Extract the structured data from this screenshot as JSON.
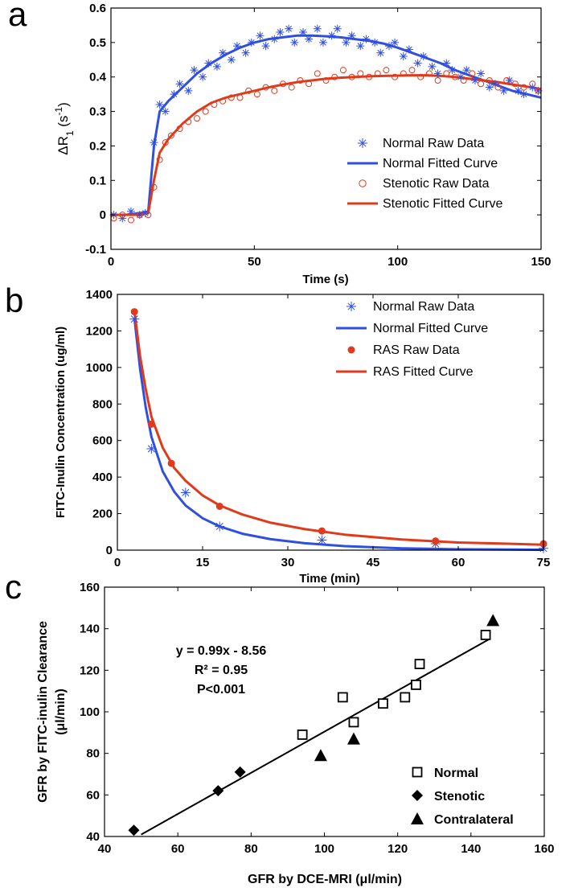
{
  "colors": {
    "blue": "#2f4fe0",
    "red": "#e03a1c",
    "black": "#000000"
  },
  "chart_data": [
    {
      "type": "line",
      "panel": "a",
      "title": "",
      "xlabel": "Time (s)",
      "ylabel_main": "ΔR",
      "ylabel_sub": "1",
      "ylabel_unit": " (s",
      "ylabel_sup": "-1",
      "ylabel_close": ")",
      "xlim": [
        0,
        150
      ],
      "ylim": [
        -0.1,
        0.6
      ],
      "xticks": [
        "0",
        "50",
        "100",
        "150"
      ],
      "yticks": [
        "-0.1",
        "0",
        "0.1",
        "0.2",
        "0.3",
        "0.4",
        "0.5",
        "0.6"
      ],
      "legend_position": "center-right",
      "legend": [
        {
          "label": "Normal Raw Data",
          "color": "#2f4fe0",
          "marker": "asterisk"
        },
        {
          "label": "Normal Fitted Curve",
          "color": "#2f4fe0",
          "marker": "line"
        },
        {
          "label": "Stenotic Raw Data",
          "color": "#e03a1c",
          "marker": "circle"
        },
        {
          "label": "Stenotic Fitted Curve",
          "color": "#e03a1c",
          "marker": "line"
        }
      ],
      "series": [
        {
          "name": "Normal Fitted Curve",
          "color": "#2f4fe0",
          "x": [
            0,
            5,
            10,
            13,
            15,
            17,
            20,
            25,
            30,
            35,
            40,
            45,
            50,
            55,
            60,
            65,
            70,
            75,
            80,
            85,
            90,
            95,
            100,
            105,
            110,
            115,
            120,
            125,
            130,
            135,
            140,
            145,
            150
          ],
          "y": [
            0.0,
            0.0,
            0.005,
            0.01,
            0.2,
            0.3,
            0.33,
            0.37,
            0.41,
            0.44,
            0.465,
            0.485,
            0.5,
            0.51,
            0.515,
            0.52,
            0.52,
            0.518,
            0.515,
            0.51,
            0.505,
            0.497,
            0.485,
            0.47,
            0.455,
            0.44,
            0.42,
            0.405,
            0.39,
            0.375,
            0.36,
            0.35,
            0.34
          ]
        },
        {
          "name": "Stenotic Fitted Curve",
          "color": "#e03a1c",
          "x": [
            0,
            5,
            10,
            13,
            15,
            17,
            20,
            25,
            30,
            35,
            40,
            45,
            50,
            55,
            60,
            65,
            70,
            75,
            80,
            85,
            90,
            95,
            100,
            105,
            110,
            115,
            120,
            125,
            130,
            135,
            140,
            145,
            150
          ],
          "y": [
            0.0,
            0.0,
            0.0,
            0.005,
            0.1,
            0.18,
            0.22,
            0.265,
            0.3,
            0.325,
            0.34,
            0.35,
            0.36,
            0.37,
            0.378,
            0.385,
            0.39,
            0.395,
            0.398,
            0.4,
            0.402,
            0.403,
            0.404,
            0.405,
            0.405,
            0.403,
            0.4,
            0.395,
            0.39,
            0.385,
            0.378,
            0.372,
            0.365
          ]
        },
        {
          "name": "Normal Raw Data",
          "color": "#2f4fe0",
          "marker": "asterisk",
          "x": [
            1,
            4,
            7,
            10,
            12,
            15,
            17,
            19,
            22,
            24,
            27,
            29,
            32,
            34,
            37,
            39,
            42,
            44,
            47,
            49,
            52,
            54,
            57,
            59,
            62,
            64,
            67,
            69,
            72,
            74,
            77,
            79,
            82,
            84,
            87,
            89,
            92,
            94,
            97,
            99,
            102,
            104,
            107,
            109,
            112,
            114,
            117,
            119,
            122,
            124,
            127,
            129,
            132,
            134,
            137,
            139,
            142,
            144,
            147,
            149
          ],
          "y": [
            0.0,
            -0.01,
            0.01,
            0.0,
            0.005,
            0.21,
            0.32,
            0.3,
            0.35,
            0.38,
            0.36,
            0.42,
            0.4,
            0.44,
            0.43,
            0.47,
            0.45,
            0.49,
            0.47,
            0.5,
            0.52,
            0.49,
            0.51,
            0.53,
            0.54,
            0.5,
            0.53,
            0.51,
            0.54,
            0.5,
            0.52,
            0.54,
            0.5,
            0.52,
            0.49,
            0.51,
            0.5,
            0.47,
            0.49,
            0.5,
            0.46,
            0.48,
            0.44,
            0.46,
            0.43,
            0.41,
            0.44,
            0.42,
            0.4,
            0.42,
            0.39,
            0.41,
            0.37,
            0.38,
            0.36,
            0.39,
            0.36,
            0.35,
            0.37,
            0.36
          ]
        },
        {
          "name": "Stenotic Raw Data",
          "color": "#e03a1c",
          "marker": "circle",
          "x": [
            1,
            4,
            7,
            10,
            13,
            15,
            17,
            19,
            21,
            24,
            27,
            30,
            33,
            36,
            39,
            42,
            45,
            48,
            51,
            54,
            57,
            60,
            63,
            66,
            69,
            72,
            75,
            78,
            81,
            84,
            87,
            90,
            93,
            96,
            99,
            102,
            105,
            108,
            111,
            114,
            117,
            120,
            123,
            126,
            129,
            132,
            135,
            138,
            141,
            144,
            147,
            149
          ],
          "y": [
            -0.01,
            0.0,
            -0.015,
            0.0,
            0.0,
            0.08,
            0.16,
            0.21,
            0.23,
            0.25,
            0.27,
            0.28,
            0.3,
            0.32,
            0.33,
            0.34,
            0.34,
            0.36,
            0.35,
            0.37,
            0.36,
            0.38,
            0.37,
            0.39,
            0.38,
            0.41,
            0.39,
            0.4,
            0.42,
            0.4,
            0.41,
            0.4,
            0.41,
            0.42,
            0.4,
            0.41,
            0.42,
            0.4,
            0.41,
            0.39,
            0.41,
            0.4,
            0.39,
            0.41,
            0.38,
            0.39,
            0.37,
            0.39,
            0.38,
            0.37,
            0.38,
            0.36
          ]
        }
      ]
    },
    {
      "type": "line",
      "panel": "b",
      "title": "",
      "xlabel": "Time (min)",
      "ylabel": "FITC-Inulin Concentration (ug/ml)",
      "xlim": [
        0,
        75
      ],
      "ylim": [
        0,
        1400
      ],
      "xticks": [
        "0",
        "15",
        "30",
        "45",
        "60",
        "75"
      ],
      "yticks": [
        "0",
        "200",
        "400",
        "600",
        "800",
        "1000",
        "1200",
        "1400"
      ],
      "legend_position": "top-right",
      "legend": [
        {
          "label": "Normal Raw Data",
          "color": "#2f4fe0",
          "marker": "asterisk"
        },
        {
          "label": "Normal Fitted Curve",
          "color": "#2f4fe0",
          "marker": "line"
        },
        {
          "label": "RAS Raw Data",
          "color": "#e03a1c",
          "marker": "dot"
        },
        {
          "label": "RAS Fitted Curve",
          "color": "#e03a1c",
          "marker": "line"
        }
      ],
      "series": [
        {
          "name": "Normal Fitted Curve",
          "color": "#2f4fe0",
          "x": [
            3,
            4,
            5,
            6,
            8,
            10,
            12,
            15,
            18,
            22,
            27,
            33,
            40,
            50,
            60,
            75
          ],
          "y": [
            1270,
            990,
            780,
            620,
            430,
            320,
            245,
            175,
            130,
            90,
            60,
            38,
            22,
            10,
            5,
            2
          ]
        },
        {
          "name": "RAS Fitted Curve",
          "color": "#e03a1c",
          "x": [
            3,
            4,
            5,
            6,
            8,
            10,
            12,
            15,
            18,
            22,
            27,
            33,
            40,
            50,
            60,
            75
          ],
          "y": [
            1310,
            1060,
            880,
            730,
            560,
            450,
            380,
            300,
            245,
            195,
            150,
            115,
            85,
            58,
            42,
            30
          ]
        },
        {
          "name": "Normal Raw Data",
          "color": "#2f4fe0",
          "marker": "asterisk",
          "x": [
            3,
            6,
            12,
            18,
            36,
            56,
            75
          ],
          "y": [
            1265,
            555,
            315,
            130,
            55,
            35,
            10
          ]
        },
        {
          "name": "RAS Raw Data",
          "color": "#e03a1c",
          "marker": "dot",
          "x": [
            3,
            6,
            9.5,
            18,
            36,
            56,
            75
          ],
          "y": [
            1305,
            690,
            475,
            240,
            105,
            50,
            35
          ]
        }
      ]
    },
    {
      "type": "scatter",
      "panel": "c",
      "title": "",
      "xlabel": "GFR by DCE-MRI (μl/min)",
      "ylabel_line1": "GFR by FITC-inulin Clearance",
      "ylabel_line2": "(μl/min)",
      "xlim": [
        40,
        160
      ],
      "ylim": [
        40,
        160
      ],
      "xticks": [
        "40",
        "60",
        "80",
        "100",
        "120",
        "140",
        "160"
      ],
      "yticks": [
        "40",
        "60",
        "80",
        "100",
        "120",
        "140",
        "160"
      ],
      "annotation": {
        "line1": "y = 0.99x - 8.56",
        "line2": "R² = 0.95",
        "line3": "P<0.001"
      },
      "fit_line": {
        "slope": 0.99,
        "intercept": -8.56,
        "x_range": [
          50,
          145
        ]
      },
      "legend_position": "bottom-right",
      "legend": [
        {
          "label": "Normal",
          "marker": "square-open"
        },
        {
          "label": "Stenotic",
          "marker": "diamond"
        },
        {
          "label": "Contralateral",
          "marker": "triangle"
        }
      ],
      "series": [
        {
          "name": "Normal",
          "marker": "square-open",
          "x": [
            94,
            105,
            108,
            116,
            122,
            125,
            126,
            144
          ],
          "y": [
            89,
            107,
            95,
            104,
            107,
            113,
            123,
            137
          ]
        },
        {
          "name": "Stenotic",
          "marker": "diamond",
          "x": [
            48,
            71,
            77
          ],
          "y": [
            43,
            62,
            71
          ]
        },
        {
          "name": "Contralateral",
          "marker": "triangle",
          "x": [
            99,
            108,
            146
          ],
          "y": [
            79,
            87,
            144
          ]
        }
      ]
    }
  ]
}
